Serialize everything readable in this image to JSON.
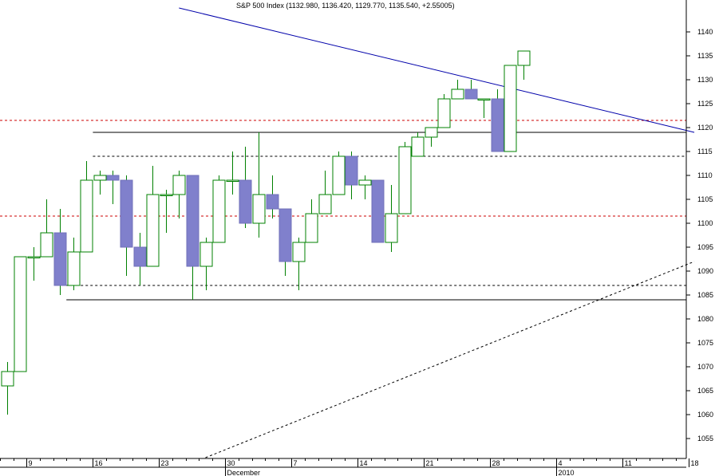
{
  "chart_data": {
    "type": "candlestick",
    "title": "S&P 500 Index (1132.980, 1136.420, 1129.770, 1135.540, +2.55005)",
    "colors": {
      "up_outline": "#008000",
      "down_fill": "#8080cc",
      "down_outline": "#7070b8",
      "wick": "#008000",
      "trendline_down": "#0000aa",
      "support_resistance": "#000000",
      "dashed_red": "#cc0000",
      "dashed_black": "#000000",
      "axis": "#000000"
    },
    "y_axis": {
      "position": "right",
      "ylim": [
        1051,
        1145
      ],
      "ticks": [
        1055,
        1060,
        1065,
        1070,
        1075,
        1080,
        1085,
        1090,
        1095,
        1100,
        1105,
        1110,
        1115,
        1120,
        1125,
        1130,
        1135,
        1140
      ]
    },
    "x_axis": {
      "tick_labels": [
        {
          "label": "9",
          "index": 1.5
        },
        {
          "label": "16",
          "index": 6.5
        },
        {
          "label": "23",
          "index": 11.5
        },
        {
          "label": "30",
          "index": 16.5
        },
        {
          "label": "7",
          "index": 21.5
        },
        {
          "label": "14",
          "index": 26.5
        },
        {
          "label": "21",
          "index": 31.5
        },
        {
          "label": "28",
          "index": 36.5
        },
        {
          "label": "4",
          "index": 41.5
        },
        {
          "label": "11",
          "index": 46.5
        },
        {
          "label": "18",
          "index": 51.5
        }
      ],
      "minor_ticks_per_major": 5,
      "period_labels": [
        {
          "label": "December",
          "index": 16.5
        },
        {
          "label": "2010",
          "index": 41.5
        }
      ]
    },
    "candles": [
      {
        "o": 1066,
        "h": 1071,
        "l": 1060,
        "c": 1069
      },
      {
        "o": 1069,
        "h": 1093,
        "l": 1069,
        "c": 1093
      },
      {
        "o": 1093,
        "h": 1095,
        "l": 1088,
        "c": 1093
      },
      {
        "o": 1093,
        "h": 1105,
        "l": 1093,
        "c": 1098
      },
      {
        "o": 1098,
        "h": 1103,
        "l": 1085,
        "c": 1087
      },
      {
        "o": 1087,
        "h": 1097,
        "l": 1086,
        "c": 1094
      },
      {
        "o": 1094,
        "h": 1113,
        "l": 1094,
        "c": 1109
      },
      {
        "o": 1109,
        "h": 1111,
        "l": 1106,
        "c": 1110
      },
      {
        "o": 1110,
        "h": 1111,
        "l": 1104,
        "c": 1109
      },
      {
        "o": 1109,
        "h": 1110,
        "l": 1089,
        "c": 1095
      },
      {
        "o": 1095,
        "h": 1098,
        "l": 1087,
        "c": 1091
      },
      {
        "o": 1091,
        "h": 1112,
        "l": 1091,
        "c": 1106
      },
      {
        "o": 1106,
        "h": 1107,
        "l": 1098,
        "c": 1106
      },
      {
        "o": 1106,
        "h": 1111,
        "l": 1101,
        "c": 1110
      },
      {
        "o": 1110,
        "h": 1110,
        "l": 1084,
        "c": 1091
      },
      {
        "o": 1091,
        "h": 1097,
        "l": 1086,
        "c": 1096
      },
      {
        "o": 1096,
        "h": 1110,
        "l": 1096,
        "c": 1109
      },
      {
        "o": 1109,
        "h": 1115,
        "l": 1106,
        "c": 1109
      },
      {
        "o": 1109,
        "h": 1116,
        "l": 1099,
        "c": 1100
      },
      {
        "o": 1100,
        "h": 1119,
        "l": 1097,
        "c": 1106
      },
      {
        "o": 1106,
        "h": 1110,
        "l": 1101,
        "c": 1103
      },
      {
        "o": 1103,
        "h": 1103,
        "l": 1089,
        "c": 1092
      },
      {
        "o": 1092,
        "h": 1097,
        "l": 1086,
        "c": 1096
      },
      {
        "o": 1096,
        "h": 1105,
        "l": 1096,
        "c": 1102
      },
      {
        "o": 1102,
        "h": 1111,
        "l": 1102,
        "c": 1106
      },
      {
        "o": 1106,
        "h": 1115,
        "l": 1106,
        "c": 1114
      },
      {
        "o": 1114,
        "h": 1115,
        "l": 1105,
        "c": 1108
      },
      {
        "o": 1108,
        "h": 1110,
        "l": 1105,
        "c": 1109
      },
      {
        "o": 1109,
        "h": 1109,
        "l": 1096,
        "c": 1096
      },
      {
        "o": 1096,
        "h": 1108,
        "l": 1094,
        "c": 1102
      },
      {
        "o": 1102,
        "h": 1117,
        "l": 1102,
        "c": 1116
      },
      {
        "o": 1114,
        "h": 1119,
        "l": 1114,
        "c": 1118
      },
      {
        "o": 1118,
        "h": 1120,
        "l": 1116,
        "c": 1120
      },
      {
        "o": 1120,
        "h": 1127,
        "l": 1120,
        "c": 1126
      },
      {
        "o": 1126,
        "h": 1130,
        "l": 1126,
        "c": 1128
      },
      {
        "o": 1128,
        "h": 1130,
        "l": 1126,
        "c": 1126
      },
      {
        "o": 1126,
        "h": 1126,
        "l": 1122,
        "c": 1126
      },
      {
        "o": 1126,
        "h": 1128,
        "l": 1115,
        "c": 1115
      },
      {
        "o": 1115,
        "h": 1133,
        "l": 1115,
        "c": 1133
      },
      {
        "o": 1133,
        "h": 1136,
        "l": 1130,
        "c": 1136
      }
    ],
    "first_candle_index": 0,
    "reference_lines": [
      {
        "kind": "horizontal-dashed",
        "value": 1121.5,
        "color": "#cc0000",
        "from_index": -1
      },
      {
        "kind": "horizontal-solid",
        "value": 1119,
        "color": "#000000",
        "from_index": 6.5
      },
      {
        "kind": "horizontal-dashed",
        "value": 1114,
        "color": "#000000",
        "from_index": 6.5
      },
      {
        "kind": "horizontal-dashed",
        "value": 1101.5,
        "color": "#cc0000",
        "from_index": -1
      },
      {
        "kind": "horizontal-dashed",
        "value": 1087,
        "color": "#000000",
        "from_index": 4.5
      },
      {
        "kind": "horizontal-solid",
        "value": 1084,
        "color": "#000000",
        "from_index": 4.5
      }
    ],
    "trend_lines": [
      {
        "kind": "solid",
        "color": "#0000aa",
        "from": {
          "index": 13.0,
          "value": 1145
        },
        "to": {
          "index": 51.9,
          "value": 1119
        }
      },
      {
        "kind": "dashed",
        "color": "#000000",
        "from": {
          "index": 15.0,
          "value": 1051
        },
        "to": {
          "index": 51.9,
          "value": 1092
        }
      }
    ]
  }
}
